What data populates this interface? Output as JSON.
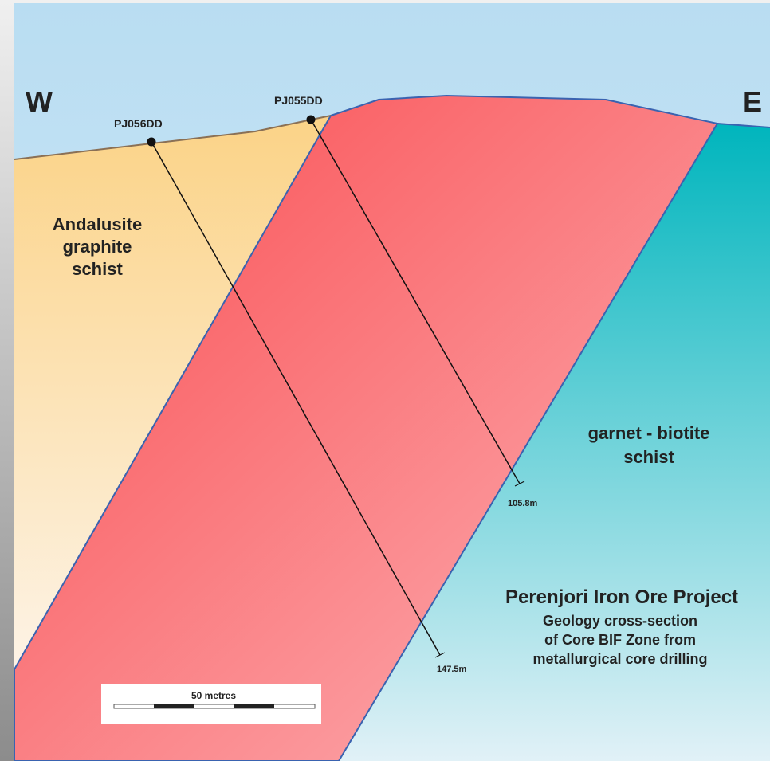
{
  "directions": {
    "west": "W",
    "east": "E"
  },
  "units": [
    {
      "label": "Andalusite\ngraphite\nschist"
    },
    {
      "label": "garnet - biotite\nschist"
    }
  ],
  "drill_holes": [
    {
      "name": "PJ056DD",
      "depth": "147.5m"
    },
    {
      "name": "PJ055DD",
      "depth": "105.8m"
    }
  ],
  "caption": {
    "title": "Perenjori Iron Ore Project",
    "subtitle": "Geology cross-section\nof Core BIF Zone from\nmetallurgical core drilling"
  },
  "scale_bar": {
    "label": "50 metres"
  }
}
